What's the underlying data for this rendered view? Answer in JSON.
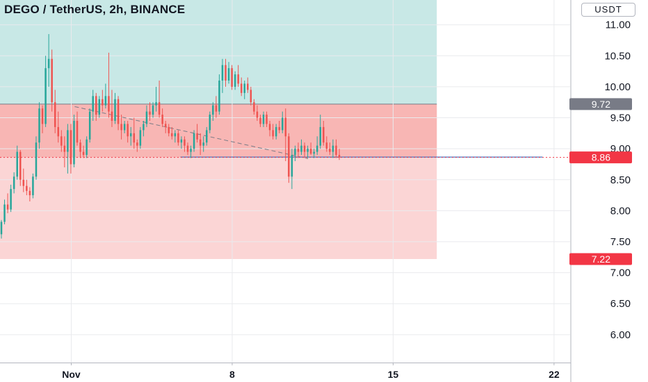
{
  "header": {
    "title": "DEGO / TetherUS, 2h, BINANCE",
    "currency": "USDT"
  },
  "colors": {
    "up": "#26a69a",
    "down": "#ef5350",
    "profit_zone": "#c8e8e6",
    "loss_zone": "#fbd5d5",
    "entry_zone": "#f8b6b4",
    "price_badge": "#f23645",
    "entry_badge": "#787b86",
    "grid": "#e9eaed"
  },
  "chart_data": {
    "type": "candlestick",
    "title": "DEGO / TetherUS, 2h, BINANCE",
    "ylim": [
      5.55,
      11.4
    ],
    "yticks": [
      "11.00",
      "10.50",
      "10.00",
      "9.50",
      "9.00",
      "8.50",
      "8.00",
      "7.50",
      "7.00",
      "6.50",
      "6.00"
    ],
    "xticks": [
      {
        "label": "Nov",
        "x": 1
      },
      {
        "label": "8",
        "x": 8
      },
      {
        "label": "15",
        "x": 15
      },
      {
        "label": "22",
        "x": 22
      }
    ],
    "xlim": [
      -2.1,
      22.7
    ],
    "position": {
      "type": "short",
      "entry": 9.72,
      "stop": 11.4,
      "target": 7.22,
      "x_start": -2.1,
      "x_end": 16.9,
      "current_price": 8.86
    },
    "badges": [
      {
        "label": "9.72",
        "value": 9.72,
        "kind": "entry"
      },
      {
        "label": "8.86",
        "value": 8.86,
        "kind": "price"
      },
      {
        "label": "7.22",
        "value": 7.22,
        "kind": "target"
      }
    ],
    "trendline": {
      "x1": 1.15,
      "y1": 9.68,
      "x2": 11.3,
      "y2": 8.84
    },
    "hline": {
      "x1": 5.75,
      "x2": 21.5,
      "y": 8.865
    },
    "candles": [
      [
        7.62,
        7.85,
        7.55,
        7.82
      ],
      [
        7.82,
        8.18,
        7.78,
        8.1
      ],
      [
        8.1,
        8.28,
        7.96,
        8.02
      ],
      [
        8.02,
        8.42,
        7.98,
        8.35
      ],
      [
        8.35,
        8.62,
        8.28,
        8.55
      ],
      [
        8.55,
        9.05,
        8.5,
        8.95
      ],
      [
        8.95,
        8.98,
        8.4,
        8.5
      ],
      [
        8.5,
        8.68,
        8.3,
        8.4
      ],
      [
        8.4,
        8.5,
        8.25,
        8.32
      ],
      [
        8.32,
        8.38,
        8.15,
        8.25
      ],
      [
        8.25,
        8.6,
        8.2,
        8.55
      ],
      [
        8.55,
        9.2,
        8.5,
        9.1
      ],
      [
        9.1,
        9.75,
        9.0,
        9.65
      ],
      [
        9.65,
        9.7,
        9.25,
        9.4
      ],
      [
        9.4,
        10.5,
        9.35,
        10.3
      ],
      [
        10.3,
        10.85,
        10.0,
        10.45
      ],
      [
        10.45,
        10.6,
        9.6,
        9.75
      ],
      [
        9.75,
        9.95,
        9.25,
        9.35
      ],
      [
        9.35,
        9.6,
        9.1,
        9.2
      ],
      [
        9.2,
        9.3,
        8.95,
        9.05
      ],
      [
        9.05,
        9.2,
        8.7,
        8.95
      ],
      [
        8.95,
        9.4,
        8.6,
        9.3
      ],
      [
        9.3,
        9.4,
        8.6,
        8.75
      ],
      [
        8.75,
        9.55,
        8.7,
        9.45
      ],
      [
        9.45,
        9.6,
        9.05,
        9.1
      ],
      [
        9.1,
        9.15,
        8.85,
        8.95
      ],
      [
        8.95,
        9.05,
        8.85,
        8.9
      ],
      [
        8.9,
        9.2,
        8.85,
        9.15
      ],
      [
        9.15,
        9.65,
        9.1,
        9.6
      ],
      [
        9.6,
        9.95,
        9.45,
        9.85
      ],
      [
        9.85,
        9.9,
        9.45,
        9.55
      ],
      [
        9.55,
        9.85,
        9.5,
        9.8
      ],
      [
        9.8,
        9.95,
        9.6,
        9.7
      ],
      [
        9.7,
        10.05,
        9.65,
        9.85
      ],
      [
        9.85,
        10.55,
        9.5,
        9.6
      ],
      [
        9.6,
        9.95,
        9.35,
        9.45
      ],
      [
        9.45,
        9.9,
        9.4,
        9.8
      ],
      [
        9.8,
        9.85,
        9.3,
        9.4
      ],
      [
        9.4,
        9.55,
        9.15,
        9.3
      ],
      [
        9.3,
        9.45,
        9.25,
        9.4
      ],
      [
        9.4,
        9.45,
        9.1,
        9.2
      ],
      [
        9.2,
        9.35,
        9.05,
        9.25
      ],
      [
        9.25,
        9.5,
        9.0,
        9.1
      ],
      [
        9.1,
        9.15,
        8.95,
        9.05
      ],
      [
        9.05,
        9.35,
        9.0,
        9.3
      ],
      [
        9.3,
        9.45,
        9.2,
        9.4
      ],
      [
        9.4,
        9.7,
        9.35,
        9.6
      ],
      [
        9.6,
        9.75,
        9.45,
        9.55
      ],
      [
        9.55,
        9.75,
        9.5,
        9.7
      ],
      [
        9.7,
        10.0,
        9.6,
        9.75
      ],
      [
        9.75,
        10.1,
        9.5,
        9.55
      ],
      [
        9.55,
        9.65,
        9.35,
        9.4
      ],
      [
        9.4,
        9.45,
        9.25,
        9.35
      ],
      [
        9.35,
        9.4,
        9.2,
        9.25
      ],
      [
        9.25,
        9.35,
        9.15,
        9.2
      ],
      [
        9.2,
        9.3,
        9.1,
        9.25
      ],
      [
        9.25,
        9.3,
        9.05,
        9.1
      ],
      [
        9.1,
        9.2,
        9.0,
        9.15
      ],
      [
        9.15,
        9.2,
        8.95,
        9.05
      ],
      [
        9.05,
        9.1,
        8.9,
        8.95
      ],
      [
        8.95,
        9.05,
        8.85,
        9.0
      ],
      [
        9.0,
        9.3,
        8.95,
        9.25
      ],
      [
        9.25,
        9.4,
        9.1,
        9.15
      ],
      [
        9.15,
        9.25,
        8.9,
        9.05
      ],
      [
        9.05,
        9.2,
        8.95,
        9.1
      ],
      [
        9.1,
        9.35,
        9.05,
        9.3
      ],
      [
        9.3,
        9.6,
        9.25,
        9.55
      ],
      [
        9.55,
        9.75,
        9.45,
        9.7
      ],
      [
        9.7,
        9.85,
        9.5,
        9.6
      ],
      [
        9.6,
        10.2,
        9.55,
        10.1
      ],
      [
        10.1,
        10.45,
        9.9,
        10.35
      ],
      [
        10.35,
        10.45,
        10.0,
        10.1
      ],
      [
        10.1,
        10.4,
        10.05,
        10.3
      ],
      [
        10.3,
        10.35,
        9.95,
        10.0
      ],
      [
        10.0,
        10.25,
        9.95,
        10.2
      ],
      [
        10.2,
        10.35,
        10.0,
        10.05
      ],
      [
        10.05,
        10.15,
        9.85,
        9.9
      ],
      [
        9.9,
        10.1,
        9.8,
        10.05
      ],
      [
        10.05,
        10.15,
        9.9,
        9.95
      ],
      [
        9.95,
        10.0,
        9.7,
        9.75
      ],
      [
        9.75,
        9.8,
        9.55,
        9.6
      ],
      [
        9.6,
        9.7,
        9.45,
        9.5
      ],
      [
        9.5,
        9.55,
        9.35,
        9.4
      ],
      [
        9.4,
        9.6,
        9.35,
        9.55
      ],
      [
        9.55,
        9.6,
        9.35,
        9.4
      ],
      [
        9.4,
        9.45,
        9.2,
        9.3
      ],
      [
        9.3,
        9.4,
        9.15,
        9.2
      ],
      [
        9.2,
        9.4,
        9.15,
        9.35
      ],
      [
        9.35,
        9.45,
        9.25,
        9.3
      ],
      [
        9.3,
        9.6,
        9.25,
        9.5
      ],
      [
        9.5,
        9.65,
        8.8,
        9.2
      ],
      [
        9.2,
        9.25,
        8.45,
        8.55
      ],
      [
        8.55,
        9.0,
        8.35,
        8.9
      ],
      [
        8.9,
        9.05,
        8.8,
        9.0
      ],
      [
        9.0,
        9.1,
        8.85,
        8.95
      ],
      [
        8.95,
        9.15,
        8.9,
        9.05
      ],
      [
        9.05,
        9.1,
        8.85,
        8.95
      ],
      [
        8.95,
        9.05,
        8.85,
        9.0
      ],
      [
        9.0,
        9.1,
        8.9,
        8.92
      ],
      [
        8.92,
        9.0,
        8.85,
        8.95
      ],
      [
        8.95,
        9.2,
        8.9,
        9.05
      ],
      [
        9.05,
        9.55,
        9.0,
        9.35
      ],
      [
        9.35,
        9.45,
        9.05,
        9.1
      ],
      [
        9.1,
        9.2,
        8.95,
        9.0
      ],
      [
        9.0,
        9.1,
        8.9,
        8.95
      ],
      [
        8.95,
        9.15,
        8.85,
        9.05
      ],
      [
        9.05,
        9.15,
        8.85,
        8.9
      ],
      [
        8.9,
        9.0,
        8.82,
        8.86
      ]
    ]
  }
}
